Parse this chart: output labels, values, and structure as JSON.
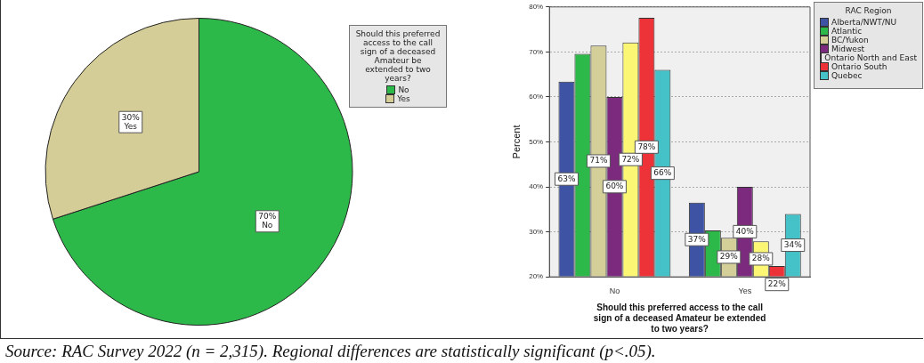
{
  "chart_data": [
    {
      "type": "pie",
      "categories": [
        "No",
        "Yes"
      ],
      "values": [
        70,
        30
      ],
      "colors": [
        "#2db84a",
        "#d4cd98"
      ],
      "value_labels": [
        "70%",
        "30%"
      ],
      "legend": "top right",
      "legend_title": "Should this preferred access to the call sign of a deceased Amateur be extended to two years?",
      "annotations": [
        "Source: RAC Survey 2022 (n = 2,315). Regional differences are statistically significant (p<.05)."
      ]
    },
    {
      "type": "bar",
      "categories": [
        "No",
        "Yes"
      ],
      "xlabel": "Should this preferred access to the call sign of a deceased Amateur be extended to two years?",
      "ylabel": "Percent",
      "ylim": [
        20,
        80
      ],
      "yticks": [
        {
          "value": 20,
          "label": "20%"
        },
        {
          "value": 30,
          "label": "30%"
        },
        {
          "value": 40,
          "label": "40%"
        },
        {
          "value": 50,
          "label": "50%"
        },
        {
          "value": 60,
          "label": "60%"
        },
        {
          "value": 70,
          "label": "70%"
        },
        {
          "value": 80,
          "label": "80%"
        }
      ],
      "grid": "y",
      "legend": "top right",
      "legend_title": "RAC Region",
      "series": [
        {
          "name": "Alberta/NWT/NU",
          "color": "#3e53a4",
          "values": [
            63.4,
            36.5
          ],
          "value_labels": [
            "63%",
            "37%"
          ]
        },
        {
          "name": "Atlantic",
          "color": "#2db84a",
          "values": [
            69.6,
            30.3
          ],
          "value_labels": [
            null,
            null
          ]
        },
        {
          "name": "BC/Yukon",
          "color": "#d4cf98",
          "values": [
            71.4,
            28.7
          ],
          "value_labels": [
            "71%",
            "29%"
          ]
        },
        {
          "name": "Midwest",
          "color": "#7b2a7d",
          "values": [
            60,
            40
          ],
          "value_labels": [
            "60%",
            "40%"
          ]
        },
        {
          "name": "Ontario North and East",
          "color": "#fbf775",
          "values": [
            72.1,
            27.9
          ],
          "value_labels": [
            "72%",
            "28%"
          ]
        },
        {
          "name": "Ontario South",
          "color": "#ee3338",
          "values": [
            77.6,
            22.4
          ],
          "value_labels": [
            "78%",
            "22%"
          ]
        },
        {
          "name": "Quebec",
          "color": "#45c1c8",
          "values": [
            66,
            34
          ],
          "value_labels": [
            "66%",
            "34%"
          ]
        }
      ]
    }
  ]
}
